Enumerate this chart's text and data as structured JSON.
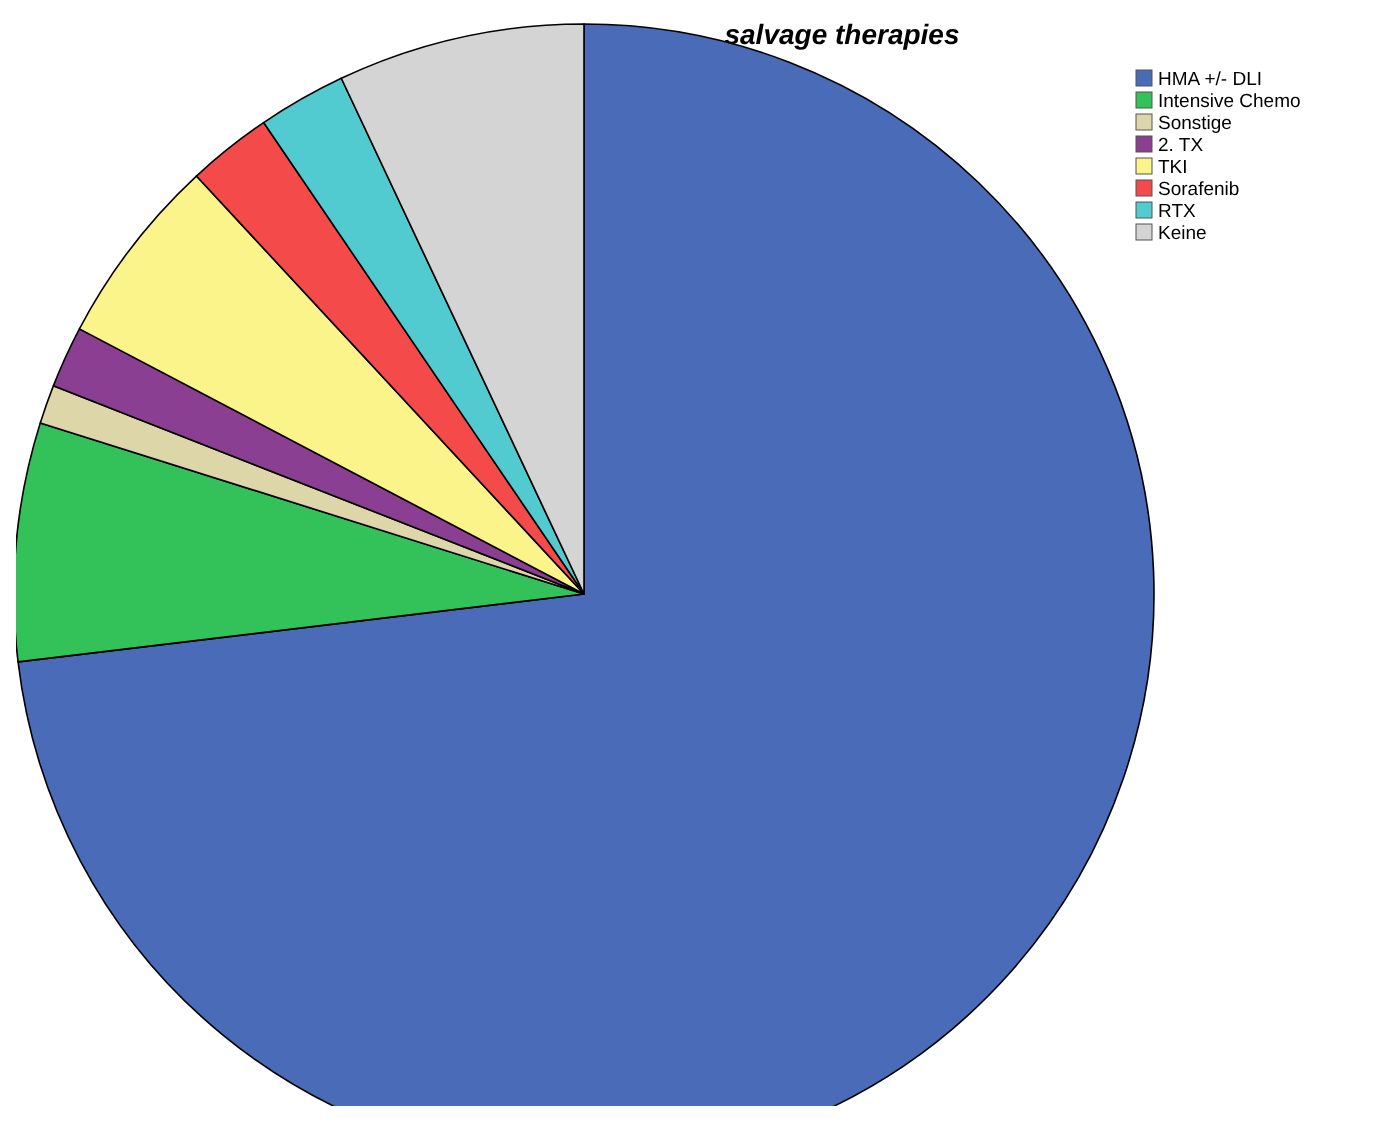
{
  "chart_data": {
    "type": "pie",
    "title": "salvage therapies",
    "categories": [
      "HMA +/- DLI",
      "Intensive Chemo",
      "Sonstige",
      "2. TX",
      "TKI",
      "Sorafenib",
      "RTX",
      "Keine"
    ],
    "values": [
      73.1,
      6.75,
      1.1,
      1.75,
      5.4,
      2.4,
      2.5,
      7.0
    ],
    "colors": [
      "#4a6bb8",
      "#33c15a",
      "#ddd6a8",
      "#8b3f92",
      "#fbf48a",
      "#f44a4a",
      "#52cbd0",
      "#d4d4d4"
    ],
    "legend": "top right"
  }
}
